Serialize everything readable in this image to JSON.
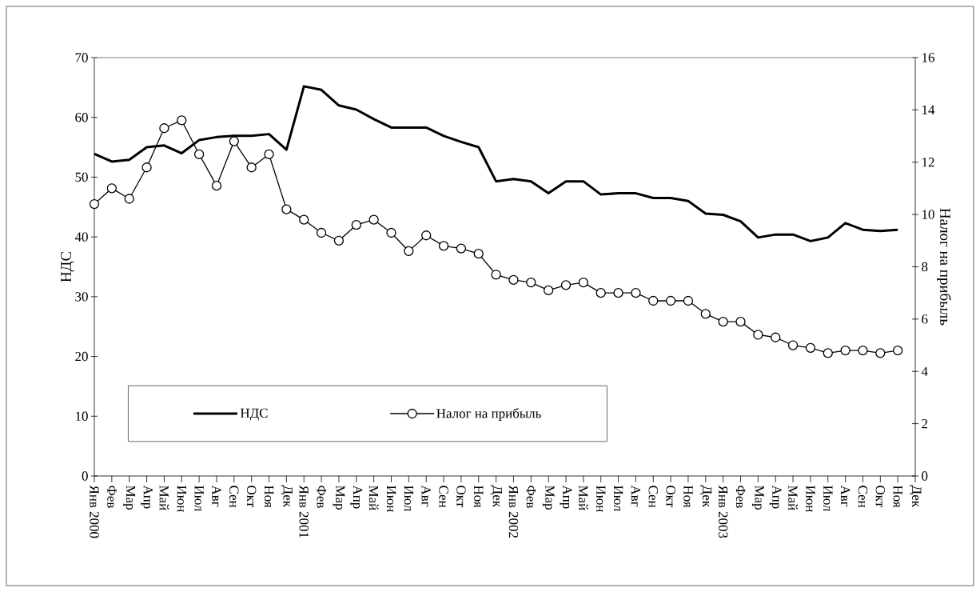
{
  "chart_data": {
    "type": "line",
    "categories": [
      "Янв 2000",
      "Фев",
      "Мар",
      "Апр",
      "Май",
      "Июн",
      "Июл",
      "Авг",
      "Сен",
      "Окт",
      "Ноя",
      "Дек",
      "Янв 2001",
      "Фев",
      "Мар",
      "Апр",
      "Май",
      "Июн",
      "Июл",
      "Авг",
      "Сен",
      "Окт",
      "Ноя",
      "Дек",
      "Янв 2002",
      "Фев",
      "Мар",
      "Апр",
      "Май",
      "Июн",
      "Июл",
      "Авг",
      "Сен",
      "Окт",
      "Ноя",
      "Дек",
      "Янв 2003",
      "Фев",
      "Мар",
      "Апр",
      "Май",
      "Июн",
      "Июл",
      "Авг",
      "Сен",
      "Окт",
      "Ноя",
      "Дек"
    ],
    "series": [
      {
        "name": "НДС",
        "color": "#000000",
        "marker": "none",
        "values": [
          53.9,
          52.6,
          52.9,
          55.0,
          55.3,
          54.0,
          56.2,
          56.7,
          56.9,
          56.9,
          57.2,
          54.6,
          65.2,
          64.6,
          62.0,
          61.3,
          59.7,
          58.3,
          58.3,
          58.3,
          56.9,
          55.9,
          55.0,
          49.3,
          49.7,
          49.3,
          47.3,
          49.3,
          49.3,
          47.1,
          47.3,
          47.3,
          46.5,
          46.5,
          46.0,
          43.9,
          43.7,
          42.6,
          39.9,
          40.4,
          40.4,
          39.3,
          39.9,
          42.3,
          41.2,
          41.0,
          41.2,
          null
        ]
      },
      {
        "name": "Налог на прибыль",
        "color": "#000000",
        "marker": "circle",
        "axis": "y2",
        "values": [
          10.4,
          11.0,
          10.6,
          11.8,
          13.3,
          13.6,
          12.3,
          11.1,
          12.8,
          11.8,
          12.3,
          10.2,
          9.8,
          9.3,
          9.0,
          9.6,
          9.8,
          9.3,
          8.6,
          9.2,
          8.8,
          8.7,
          8.5,
          7.7,
          7.5,
          7.4,
          7.1,
          7.3,
          7.4,
          7.0,
          7.0,
          7.0,
          6.7,
          6.7,
          6.7,
          6.2,
          5.9,
          5.9,
          5.4,
          5.3,
          5.0,
          4.9,
          4.7,
          4.8,
          4.8,
          4.7,
          4.8,
          null
        ]
      }
    ],
    "ylabel": "НДС",
    "y2label": "Налог на прибыль",
    "ylim": [
      0,
      70
    ],
    "yticks": [
      0,
      10,
      20,
      30,
      40,
      50,
      60,
      70
    ],
    "y2lim": [
      0,
      16
    ],
    "y2ticks": [
      0,
      2,
      4,
      6,
      8,
      10,
      12,
      14,
      16
    ],
    "legend": "bottom left"
  }
}
